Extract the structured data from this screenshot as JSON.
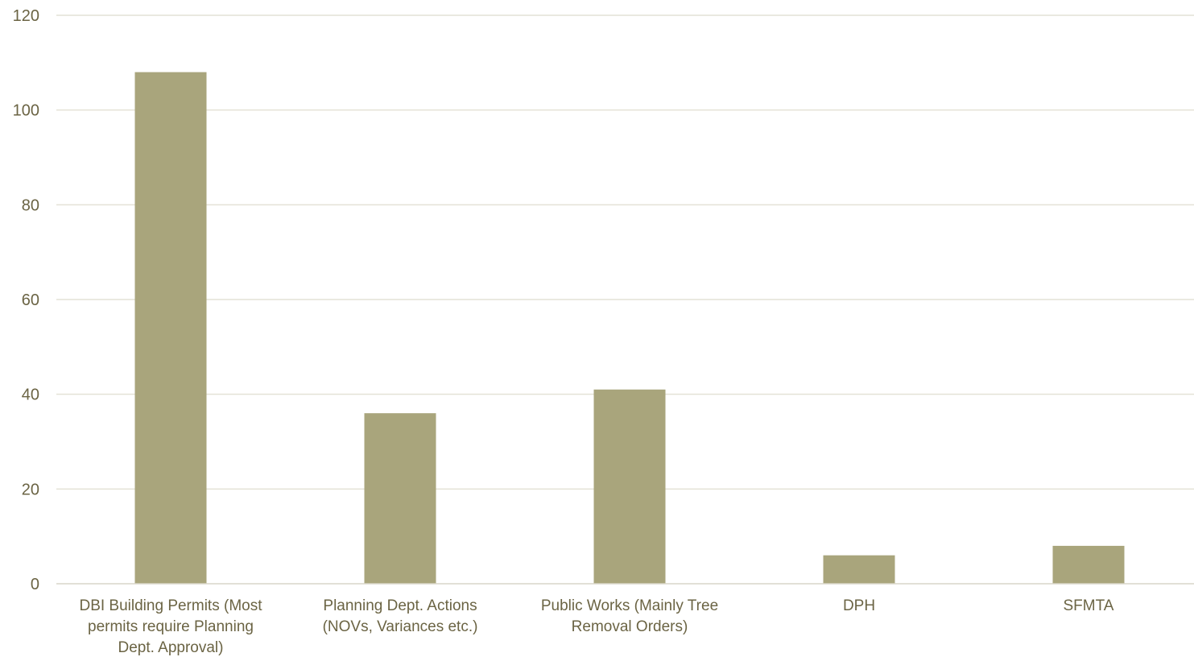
{
  "chart_data": {
    "type": "bar",
    "title": "",
    "xlabel": "",
    "ylabel": "",
    "ylim": [
      0,
      120
    ],
    "yticks": [
      0,
      20,
      40,
      60,
      80,
      100,
      120
    ],
    "grid": true,
    "legend": "none",
    "bar_color": "#a9a57c",
    "categories": [
      [
        "DBI Building Permits (Most",
        "permits require Planning",
        "Dept. Approval)"
      ],
      [
        "Planning Dept. Actions",
        "(NOVs, Variances etc.)"
      ],
      [
        "Public Works (Mainly Tree",
        "Removal Orders)"
      ],
      [
        "DPH"
      ],
      [
        "SFMTA"
      ]
    ],
    "values": [
      108,
      36,
      41,
      6,
      8
    ]
  }
}
